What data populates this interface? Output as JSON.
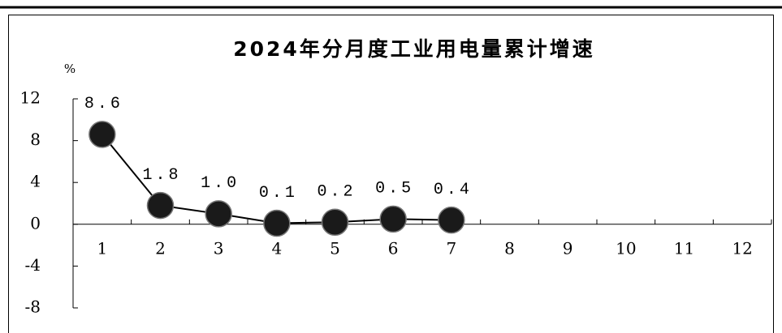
{
  "chart_data": {
    "type": "line",
    "title": "2024年分月度工业用电量累计增速",
    "y_unit": "%",
    "categories": [
      "1",
      "2",
      "3",
      "4",
      "5",
      "6",
      "7",
      "8",
      "9",
      "10",
      "11",
      "12"
    ],
    "values": [
      8.6,
      1.8,
      1.0,
      0.1,
      0.2,
      0.5,
      0.4,
      null,
      null,
      null,
      null,
      null
    ],
    "value_labels": [
      "8.6",
      "1.8",
      "1.0",
      "0.1",
      "0.2",
      "0.5",
      "0.4",
      null,
      null,
      null,
      null,
      null
    ],
    "color": "#000000",
    "marker_color": "#1a1a1a",
    "ylim": [
      -8,
      12
    ],
    "yticks": [
      -8,
      -4,
      0,
      4,
      8,
      12
    ],
    "grid": false
  }
}
